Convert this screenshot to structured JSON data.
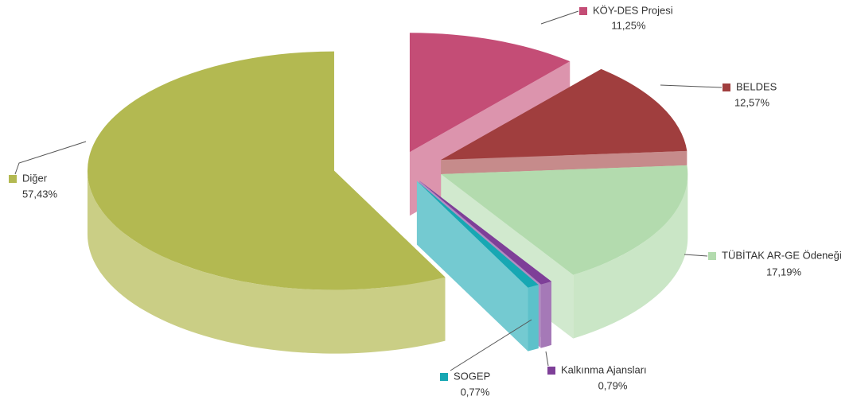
{
  "chart_data": {
    "type": "pie3d",
    "categories": [
      "KÖY-DES Projesi",
      "BELDES",
      "TÜBİTAK AR-GE Ödeneği",
      "Kalkınma Ajansları",
      "SOGEP",
      "Diğer"
    ],
    "values": [
      11.25,
      12.57,
      17.19,
      0.79,
      0.77,
      57.43
    ],
    "value_labels": [
      "11,25%",
      "12,57%",
      "17,19%",
      "0,79%",
      "0,77%",
      "57,43%"
    ],
    "colors": [
      "#c44d76",
      "#a03e3e",
      "#b3dbae",
      "#7e3f98",
      "#17a7b3",
      "#b3b951"
    ]
  }
}
